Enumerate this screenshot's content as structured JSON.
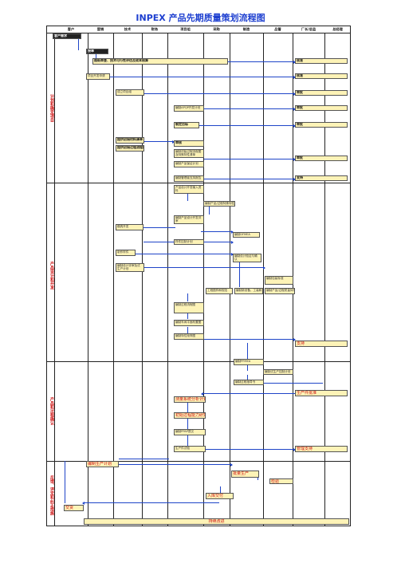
{
  "title": "INPEX 产品先期质量策划流程图",
  "columns": [
    "客户",
    "营销",
    "技术",
    "财务",
    "项目组",
    "采购",
    "制造",
    "品管",
    "厂长/总监",
    "总经理"
  ],
  "phases": [
    "计划和确定项目",
    "产品设计和开发",
    "产品和过程确认",
    "反馈、评定和纠正措施"
  ],
  "boxes": {
    "b01": "客户需求",
    "b02": "接单",
    "b03": "图纸审查、技术可行性评估及成本核算",
    "b04": "核准",
    "b05": "项目开发申请",
    "b06": "核准",
    "b07": "成立项目组",
    "b08": "审批",
    "b09": "编制APQP开发计划",
    "b10": "审批",
    "b11": "制定目标",
    "b12": "审批",
    "b13": "提供初始材料清单",
    "b14": "提供初始过程流程图",
    "b15": "审核",
    "b16": "编制初始过程流程图及特殊特性清单",
    "b17": "审批",
    "b18": "编制产品保证计划",
    "b19": "编制管理者支持报告",
    "b20": "支持",
    "b21": "产品设计开发输入资料",
    "b22": "编制产品/过程特殊特性",
    "b23": "编制产品设计开发评审",
    "b24": "模具开发",
    "b25": "编制DFMEA",
    "b26": "样件控制计划",
    "b27": "制作样件",
    "b28": "编制设计验证与确认",
    "b29": "编制设计评审及试生产计划",
    "b30": "编制包装标准",
    "b31": "工程图样和规范",
    "b32": "编制新设备、工装和试验设备要求",
    "b33": "编制产品/过程质量体系评审",
    "b34": "编制过程流程图",
    "b35": "编制车间平面布置图",
    "b36": "编制特性矩阵图",
    "b37": "编制PFMEA",
    "b38": "编制试生产控制计划",
    "b39": "编制过程指导书",
    "b40": "支持",
    "b41": "测量系统分析计划",
    "b42": "初始过程能力研究计划",
    "b43": "编制PPAP提交",
    "b44": "生产件批准",
    "b45": "生产件试验",
    "b46": "包装评价",
    "b47": "生产控制计划",
    "b48": "质量策划认定",
    "b49": "管理支持",
    "b50": "编制生产计划",
    "b51": "批量生产",
    "b52": "检验",
    "b53": "入库交付",
    "b54": "交货",
    "b55": "持续改进"
  }
}
